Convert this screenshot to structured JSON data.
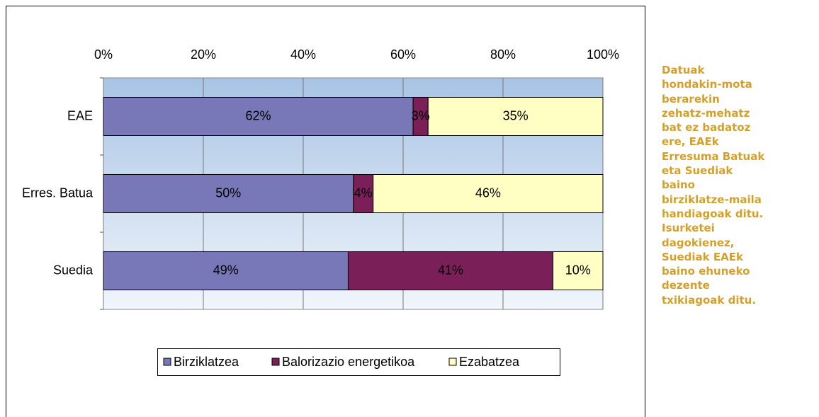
{
  "chart_data": {
    "type": "stacked-bar-horizontal",
    "categories": [
      "EAE",
      "Erres. Batua",
      "Suedia"
    ],
    "series": [
      {
        "name": "Birziklatzea",
        "color": "#7878b9",
        "values": [
          62,
          50,
          49
        ],
        "value_labels": [
          "62%",
          "50%",
          "49%"
        ]
      },
      {
        "name": "Balorizazio energetikoa",
        "color": "#7a1f58",
        "values": [
          3,
          4,
          41
        ],
        "value_labels": [
          "3%",
          "4%",
          "41%"
        ]
      },
      {
        "name": "Ezabatzea",
        "color": "#ffffc4",
        "values": [
          35,
          46,
          10
        ],
        "value_labels": [
          "35%",
          "46%",
          "10%"
        ]
      }
    ],
    "xlim": [
      0,
      100
    ],
    "xticks": [
      {
        "value": 0,
        "label": "0%"
      },
      {
        "value": 20,
        "label": "20%"
      },
      {
        "value": 40,
        "label": "40%"
      },
      {
        "value": 60,
        "label": "60%"
      },
      {
        "value": 80,
        "label": "80%"
      },
      {
        "value": 100,
        "label": "100%"
      }
    ],
    "grid": true,
    "legend": "bottom"
  },
  "note": {
    "lines": [
      "Datuak",
      "hondakin-mota",
      "berarekin",
      "zehatz-mehatz",
      "bat ez badatoz",
      "ere, EAEk",
      "Erresuma Batuak",
      "eta Suediak",
      "baino",
      "birziklatze-maila",
      "handiagoak ditu.",
      "Isurketei",
      "dagokienez,",
      "Suediak EAEk",
      "baino ehuneko",
      "dezente",
      "txikiagoak ditu."
    ]
  }
}
